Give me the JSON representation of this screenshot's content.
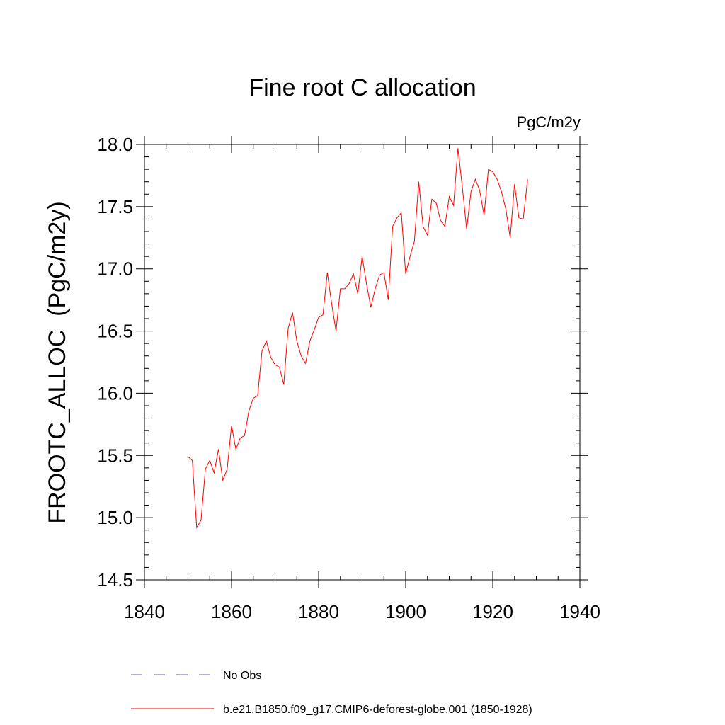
{
  "chart_data": {
    "type": "line",
    "title": "Fine root C allocation",
    "units_label": "PgC/m2y",
    "ylabel": "FROOTC_ALLOC  (PgC/m2y)",
    "xlabel": "",
    "xlim": [
      1840,
      1940
    ],
    "ylim": [
      14.5,
      18.0
    ],
    "x_ticks": [
      "1840",
      "1860",
      "1880",
      "1900",
      "1920",
      "1940"
    ],
    "y_ticks": [
      "14.5",
      "15.0",
      "15.5",
      "16.0",
      "16.5",
      "17.0",
      "17.5",
      "18.0"
    ],
    "grid": false,
    "legend_position": "bottom",
    "series": [
      {
        "name": "No Obs",
        "color": "#6a5acd",
        "dashed": true,
        "x": [],
        "values": []
      },
      {
        "name": "b.e21.B1850.f09_g17.CMIP6-deforest-globe.001 (1850-1928)",
        "color": "#ff0000",
        "dashed": false,
        "x": [
          1850,
          1851,
          1852,
          1853,
          1854,
          1855,
          1856,
          1857,
          1858,
          1859,
          1860,
          1861,
          1862,
          1863,
          1864,
          1865,
          1866,
          1867,
          1868,
          1869,
          1870,
          1871,
          1872,
          1873,
          1874,
          1875,
          1876,
          1877,
          1878,
          1879,
          1880,
          1881,
          1882,
          1883,
          1884,
          1885,
          1886,
          1887,
          1888,
          1889,
          1890,
          1891,
          1892,
          1893,
          1894,
          1895,
          1896,
          1897,
          1898,
          1899,
          1900,
          1901,
          1902,
          1903,
          1904,
          1905,
          1906,
          1907,
          1908,
          1909,
          1910,
          1911,
          1912,
          1913,
          1914,
          1915,
          1916,
          1917,
          1918,
          1919,
          1920,
          1921,
          1922,
          1923,
          1924,
          1925,
          1926,
          1927,
          1928
        ],
        "values": [
          15.49,
          15.46,
          14.92,
          14.98,
          15.39,
          15.46,
          15.36,
          15.55,
          15.3,
          15.39,
          15.74,
          15.55,
          15.64,
          15.66,
          15.86,
          15.96,
          15.98,
          16.34,
          16.42,
          16.29,
          16.23,
          16.21,
          16.07,
          16.52,
          16.65,
          16.42,
          16.3,
          16.24,
          16.42,
          16.51,
          16.61,
          16.63,
          16.97,
          16.72,
          16.5,
          16.84,
          16.84,
          16.88,
          16.96,
          16.8,
          17.1,
          16.88,
          16.69,
          16.84,
          16.95,
          16.97,
          16.75,
          17.34,
          17.41,
          17.45,
          16.96,
          17.1,
          17.22,
          17.7,
          17.34,
          17.27,
          17.56,
          17.53,
          17.39,
          17.34,
          17.58,
          17.51,
          17.97,
          17.66,
          17.32,
          17.62,
          17.72,
          17.63,
          17.43,
          17.8,
          17.78,
          17.72,
          17.62,
          17.48,
          17.25,
          17.68,
          17.41,
          17.4,
          17.72
        ]
      }
    ]
  }
}
